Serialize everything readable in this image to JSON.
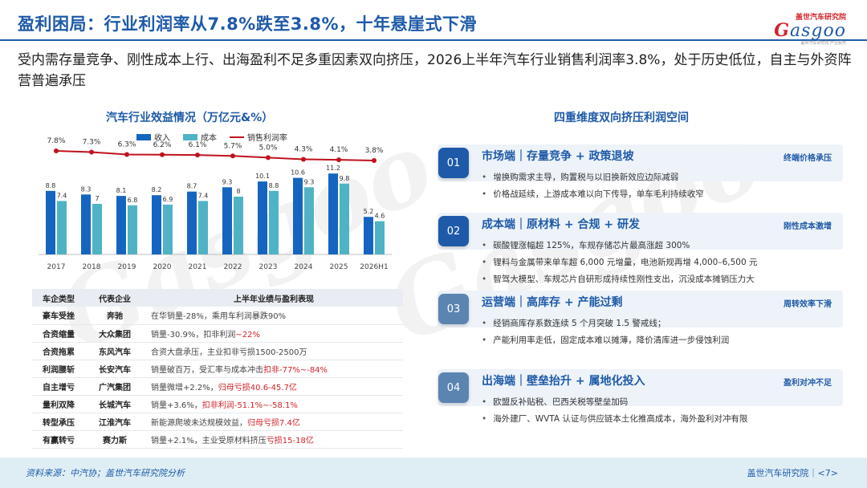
{
  "title": "盈利困局：行业利润率从7.8%跌至3.8%，十年悬崖式下滑",
  "logo": {
    "cn": "盖世汽车研究院",
    "en_main": "asgoo",
    "en_g": "G",
    "sub": "盖世汽车研究院 产业服务"
  },
  "summary": "受内需存量竞争、刚性成本上行、出海盈利不足多重因素双向挤压，2026上半年汽车行业销售利润率3.8%，处于历史低位，自主与外资阵营普遍承压",
  "chart_data": {
    "type": "bar",
    "title": "汽车行业效益情况（万亿元&%）",
    "categories": [
      "2017",
      "2018",
      "2019",
      "2020",
      "2021",
      "2022",
      "2023",
      "2024",
      "2025",
      "2026H1"
    ],
    "series": [
      {
        "name": "收入",
        "type": "bar",
        "color": "#1565c0",
        "values": [
          8.8,
          8.3,
          8.1,
          8.2,
          8.7,
          9.3,
          10.1,
          10.6,
          11.2,
          5.2
        ]
      },
      {
        "name": "成本",
        "type": "bar",
        "color": "#4fb3c5",
        "values": [
          7.4,
          7.0,
          6.8,
          6.9,
          7.4,
          8.0,
          8.8,
          9.3,
          9.8,
          4.6
        ]
      },
      {
        "name": "销售利润率",
        "type": "line",
        "color": "#c0111f",
        "unit": "%",
        "values": [
          7.8,
          7.3,
          6.3,
          6.2,
          6.1,
          5.7,
          5.0,
          4.3,
          4.1,
          3.8
        ]
      }
    ],
    "legend": "top-center",
    "grid": false
  },
  "table": {
    "headers": [
      "车企类型",
      "代表企业",
      "上半年业绩与盈利表现"
    ],
    "rows": [
      {
        "type": "豪车受挫",
        "company": "奔驰",
        "text": "在华销量-28%，乘用车利润暴跌90%",
        "neg": ""
      },
      {
        "type": "合资缩量",
        "company": "大众集团",
        "text": "销量-30.9%，扣非利润",
        "neg": "~22%"
      },
      {
        "type": "合资拖累",
        "company": "东风汽车",
        "text": "合资大盘承压，主业扣非亏损1500-2500万",
        "neg": ""
      },
      {
        "type": "利润腰斩",
        "company": "长安汽车",
        "text": "销量破百万，受汇率与成本冲击",
        "neg": "扣非-77%~-84%"
      },
      {
        "type": "自主增亏",
        "company": "广汽集团",
        "text": "销量微增+2.2%，",
        "neg": "归母亏损40.6-45.7亿"
      },
      {
        "type": "量利双降",
        "company": "长城汽车",
        "text": "销量+3.6%，",
        "neg": "扣非利润-51.1%~-58.1%"
      },
      {
        "type": "转型承压",
        "company": "江淮汽车",
        "text": "新能源爬坡未达规模效益，",
        "neg": "归母亏损7.4亿"
      },
      {
        "type": "有赢转亏",
        "company": "赛力斯",
        "text": "销量+2.1%，主业受原材料挤压",
        "neg": "亏损15-18亿"
      }
    ]
  },
  "panel": {
    "title": "四重维度双向挤压利润空间",
    "cards": [
      {
        "num": "01",
        "head": "市场端｜存量竞争 + 政策退坡",
        "tag": "终端价格承压",
        "color": "#1e5aa8",
        "bullets": [
          "增换购需求主导，购置税与以旧换新效应边际减弱",
          "价格战延续，上游成本难以向下传导，单车毛利持续收窄"
        ]
      },
      {
        "num": "02",
        "head": "成本端｜原材料 + 合规 + 研发",
        "tag": "刚性成本激增",
        "color": "#1e5aa8",
        "bullets": [
          "碳酸锂涨幅超 125%，车规存储芯片最高涨超 300%",
          "锂料与金属带来单车超 6,000 元增量，电池新规再增 4,000–6,500 元",
          "智驾大模型、车规芯片自研形成持续性刚性支出，沉没成本摊销压力大"
        ]
      },
      {
        "num": "03",
        "head": "运营端｜高库存 + 产能过剩",
        "tag": "周转效率下滑",
        "color": "#5b84b1",
        "bullets": [
          "经销商库存系数连续 5 个月突破 1.5 警戒线；",
          "产能利用率走低，固定成本难以摊薄，降价清库进一步侵蚀利润"
        ]
      },
      {
        "num": "04",
        "head": "出海端｜壁垒抬升 + 属地化投入",
        "tag": "盈利对冲不足",
        "color": "#5b84b1",
        "bullets": [
          "欧盟反补贴税、巴西关税等壁垒加码",
          "海外建厂、WVTA 认证与供应链本土化推高成本，海外盈利对冲有限"
        ]
      }
    ]
  },
  "footer": {
    "source": "资料来源：中汽协；盖世汽车研究院分析",
    "brand": "盖世汽车研究院｜<7>"
  }
}
